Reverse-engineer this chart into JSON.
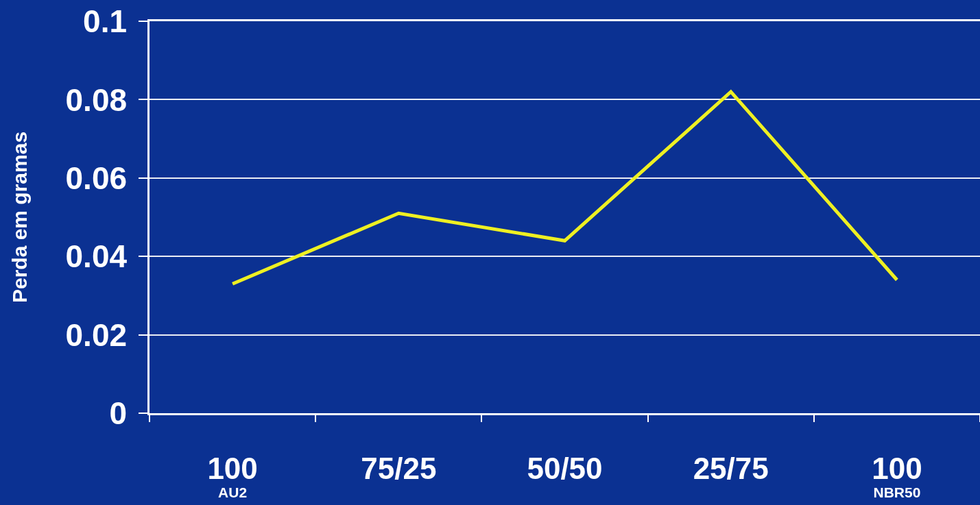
{
  "chart_data": {
    "type": "line",
    "ylabel": "Perda em gramas",
    "categories": [
      "100\nAU2",
      "75/25",
      "50/50",
      "25/75",
      "100\nNBR50"
    ],
    "series": [
      {
        "color": "#eef022",
        "values": [
          0.033,
          0.051,
          0.044,
          0.082,
          0.034
        ]
      }
    ],
    "ylim": [
      0,
      0.1
    ],
    "yticks": [
      0,
      0.02,
      0.04,
      0.06,
      0.08,
      0.1
    ],
    "grid": "y",
    "marker": "none",
    "line_style": "solid"
  }
}
